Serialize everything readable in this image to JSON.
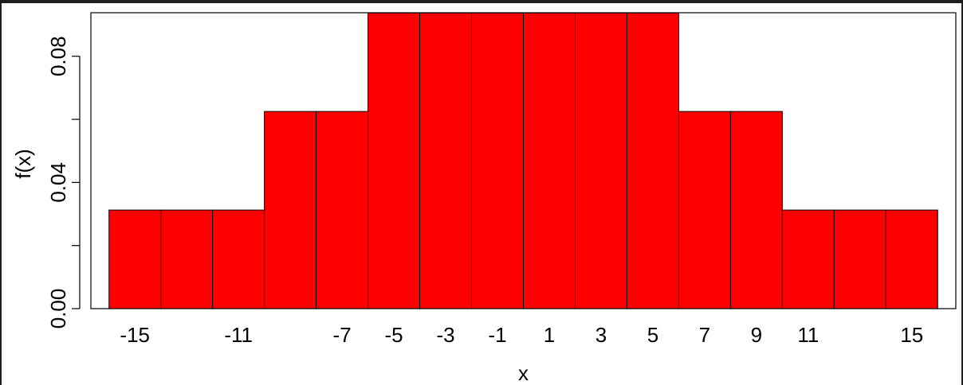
{
  "chart_data": {
    "type": "bar",
    "title": "",
    "xlabel": "x",
    "ylabel": "f(x)",
    "x": [
      -15,
      -13,
      -11,
      -9,
      -7,
      -5,
      -3,
      -1,
      1,
      3,
      5,
      7,
      9,
      11,
      13,
      15
    ],
    "values": [
      0.03125,
      0.03125,
      0.03125,
      0.0625,
      0.0625,
      0.09375,
      0.09375,
      0.09375,
      0.09375,
      0.09375,
      0.09375,
      0.0625,
      0.0625,
      0.03125,
      0.03125,
      0.03125
    ],
    "x_tick_labels": [
      "-15",
      "-11",
      "-7",
      "-5",
      "-3",
      "-1",
      "1",
      "3",
      "5",
      "7",
      "9",
      "11",
      "15"
    ],
    "y_ticks": [
      0.0,
      0.04,
      0.08
    ],
    "y_tick_labels": [
      "0.00",
      "0.04",
      "0.08"
    ],
    "xlim": [
      -16.7,
      16.7
    ],
    "ylim": [
      0,
      0.0938
    ],
    "bar_color": "#ff0000",
    "bar_border_color": "#000000",
    "background_color": "#ffffff",
    "grid": false,
    "legend": "none"
  }
}
